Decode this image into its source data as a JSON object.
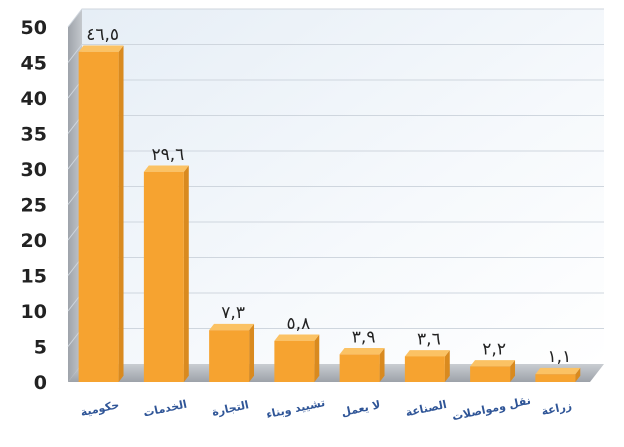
{
  "chart_data": {
    "type": "bar",
    "title": "",
    "xlabel": "",
    "ylabel": "",
    "ylim": [
      0,
      50
    ],
    "yticks": [
      0,
      5,
      10,
      15,
      20,
      25,
      30,
      35,
      40,
      45,
      50
    ],
    "categories": [
      "حكومية",
      "الخدمات",
      "التجارة",
      "تشييد وبناء",
      "لا يعمل",
      "الصناعة",
      "نقل ومواصلات",
      "زراعة"
    ],
    "values": [
      46.5,
      29.6,
      7.3,
      5.8,
      3.9,
      3.6,
      2.2,
      1.1
    ],
    "data_labels": [
      "٤٦,٥",
      "٢٩,٦",
      "٧,٣",
      "٥,٨",
      "٣,٩",
      "٣,٦",
      "٢,٢",
      "١,١"
    ],
    "grid": true,
    "legend": "none",
    "colors": {
      "bar_front": "#f6a330",
      "bar_side": "#d98a1f",
      "bar_top": "#fbc264",
      "wall": "#f3f8fc",
      "left_wall": "#a9adb3",
      "floor": "#b8bcc2",
      "gridline": "#cfd6de",
      "category_text": "#2f5597"
    }
  }
}
